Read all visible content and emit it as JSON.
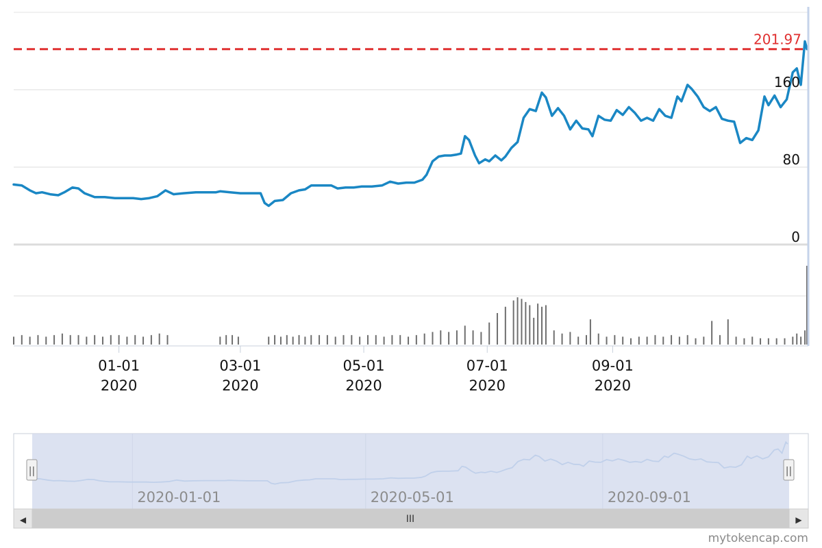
{
  "chart_data": {
    "type": "line",
    "y_axis": {
      "ticks": [
        0,
        80,
        160
      ]
    },
    "x_axis": {
      "tick_labels": [
        {
          "date": "2020-01-01",
          "line1": "01-01",
          "line2": "2020"
        },
        {
          "date": "2020-03-01",
          "line1": "03-01",
          "line2": "2020"
        },
        {
          "date": "2020-05-01",
          "line1": "05-01",
          "line2": "2020"
        },
        {
          "date": "2020-07-01",
          "line1": "07-01",
          "line2": "2020"
        },
        {
          "date": "2020-09-01",
          "line1": "09-01",
          "line2": "2020"
        }
      ]
    },
    "last_price": {
      "value": 201.97,
      "label": "201.97",
      "color": "#e03030"
    },
    "series": [
      {
        "color": "#1a87c4",
        "points": [
          [
            "2019-11-10",
            62
          ],
          [
            "2019-11-14",
            61
          ],
          [
            "2019-11-18",
            56
          ],
          [
            "2019-11-21",
            53
          ],
          [
            "2019-11-24",
            54
          ],
          [
            "2019-11-28",
            52
          ],
          [
            "2019-12-02",
            51
          ],
          [
            "2019-12-05",
            54
          ],
          [
            "2019-12-09",
            59
          ],
          [
            "2019-12-12",
            58
          ],
          [
            "2019-12-15",
            53
          ],
          [
            "2019-12-20",
            49
          ],
          [
            "2019-12-25",
            49
          ],
          [
            "2019-12-30",
            48
          ],
          [
            "2020-01-03",
            48
          ],
          [
            "2020-01-08",
            48
          ],
          [
            "2020-01-12",
            47
          ],
          [
            "2020-01-16",
            48
          ],
          [
            "2020-01-20",
            50
          ],
          [
            "2020-01-24",
            56
          ],
          [
            "2020-01-28",
            52
          ],
          [
            "2020-02-02",
            53
          ],
          [
            "2020-02-08",
            54
          ],
          [
            "2020-02-14",
            54
          ],
          [
            "2020-02-18",
            54
          ],
          [
            "2020-02-20",
            55
          ],
          [
            "2020-02-25",
            54
          ],
          [
            "2020-03-01",
            53
          ],
          [
            "2020-03-06",
            53
          ],
          [
            "2020-03-11",
            53
          ],
          [
            "2020-03-13",
            43
          ],
          [
            "2020-03-15",
            40
          ],
          [
            "2020-03-18",
            45
          ],
          [
            "2020-03-22",
            46
          ],
          [
            "2020-03-26",
            53
          ],
          [
            "2020-03-30",
            56
          ],
          [
            "2020-04-02",
            57
          ],
          [
            "2020-04-05",
            61
          ],
          [
            "2020-04-10",
            61
          ],
          [
            "2020-04-15",
            61
          ],
          [
            "2020-04-18",
            58
          ],
          [
            "2020-04-22",
            59
          ],
          [
            "2020-04-26",
            59
          ],
          [
            "2020-04-30",
            60
          ],
          [
            "2020-05-05",
            60
          ],
          [
            "2020-05-10",
            61
          ],
          [
            "2020-05-14",
            65
          ],
          [
            "2020-05-18",
            63
          ],
          [
            "2020-05-22",
            64
          ],
          [
            "2020-05-26",
            64
          ],
          [
            "2020-05-30",
            67
          ],
          [
            "2020-06-01",
            72
          ],
          [
            "2020-06-04",
            86
          ],
          [
            "2020-06-07",
            91
          ],
          [
            "2020-06-10",
            92
          ],
          [
            "2020-06-13",
            92
          ],
          [
            "2020-06-16",
            93
          ],
          [
            "2020-06-18",
            94
          ],
          [
            "2020-06-20",
            112
          ],
          [
            "2020-06-22",
            108
          ],
          [
            "2020-06-25",
            92
          ],
          [
            "2020-06-27",
            84
          ],
          [
            "2020-06-30",
            88
          ],
          [
            "2020-07-02",
            86
          ],
          [
            "2020-07-05",
            92
          ],
          [
            "2020-07-08",
            87
          ],
          [
            "2020-07-10",
            91
          ],
          [
            "2020-07-13",
            100
          ],
          [
            "2020-07-16",
            106
          ],
          [
            "2020-07-19",
            131
          ],
          [
            "2020-07-22",
            140
          ],
          [
            "2020-07-25",
            138
          ],
          [
            "2020-07-28",
            157
          ],
          [
            "2020-07-30",
            152
          ],
          [
            "2020-08-02",
            133
          ],
          [
            "2020-08-05",
            141
          ],
          [
            "2020-08-08",
            133
          ],
          [
            "2020-08-11",
            119
          ],
          [
            "2020-08-14",
            128
          ],
          [
            "2020-08-17",
            120
          ],
          [
            "2020-08-20",
            119
          ],
          [
            "2020-08-22",
            112
          ],
          [
            "2020-08-25",
            133
          ],
          [
            "2020-08-28",
            129
          ],
          [
            "2020-08-31",
            128
          ],
          [
            "2020-09-03",
            139
          ],
          [
            "2020-09-06",
            134
          ],
          [
            "2020-09-09",
            142
          ],
          [
            "2020-09-12",
            136
          ],
          [
            "2020-09-15",
            128
          ],
          [
            "2020-09-18",
            131
          ],
          [
            "2020-09-21",
            128
          ],
          [
            "2020-09-24",
            140
          ],
          [
            "2020-09-27",
            133
          ],
          [
            "2020-09-30",
            131
          ],
          [
            "2020-10-03",
            153
          ],
          [
            "2020-10-05",
            148
          ],
          [
            "2020-10-08",
            165
          ],
          [
            "2020-10-10",
            161
          ],
          [
            "2020-10-13",
            153
          ],
          [
            "2020-10-16",
            142
          ],
          [
            "2020-10-19",
            138
          ],
          [
            "2020-10-22",
            142
          ],
          [
            "2020-10-25",
            130
          ],
          [
            "2020-10-28",
            128
          ],
          [
            "2020-10-31",
            127
          ],
          [
            "2020-11-03",
            105
          ],
          [
            "2020-11-06",
            110
          ],
          [
            "2020-11-09",
            108
          ],
          [
            "2020-11-12",
            118
          ],
          [
            "2020-11-15",
            153
          ],
          [
            "2020-11-17",
            144
          ],
          [
            "2020-11-20",
            154
          ],
          [
            "2020-11-23",
            142
          ],
          [
            "2020-11-26",
            150
          ],
          [
            "2020-11-29",
            178
          ],
          [
            "2020-12-01",
            182
          ],
          [
            "2020-12-03",
            165
          ],
          [
            "2020-12-05",
            210
          ],
          [
            "2020-12-06",
            201.97
          ]
        ]
      }
    ],
    "volume": {
      "color": "#6e6e6e",
      "bars": [
        [
          "2019-11-10",
          5
        ],
        [
          "2019-11-14",
          6
        ],
        [
          "2019-11-18",
          5
        ],
        [
          "2019-11-22",
          6
        ],
        [
          "2019-11-26",
          5
        ],
        [
          "2019-11-30",
          6
        ],
        [
          "2019-12-04",
          7
        ],
        [
          "2019-12-08",
          6
        ],
        [
          "2019-12-12",
          6
        ],
        [
          "2019-12-16",
          5
        ],
        [
          "2019-12-20",
          6
        ],
        [
          "2019-12-24",
          5
        ],
        [
          "2019-12-28",
          6
        ],
        [
          "2020-01-01",
          6
        ],
        [
          "2020-01-05",
          5
        ],
        [
          "2020-01-09",
          6
        ],
        [
          "2020-01-13",
          5
        ],
        [
          "2020-01-17",
          6
        ],
        [
          "2020-01-21",
          7
        ],
        [
          "2020-01-25",
          6
        ],
        [
          "2020-02-20",
          5
        ],
        [
          "2020-02-23",
          6
        ],
        [
          "2020-02-26",
          6
        ],
        [
          "2020-02-29",
          5
        ],
        [
          "2020-03-15",
          5
        ],
        [
          "2020-03-18",
          6
        ],
        [
          "2020-03-21",
          5
        ],
        [
          "2020-03-24",
          6
        ],
        [
          "2020-03-27",
          5
        ],
        [
          "2020-03-30",
          6
        ],
        [
          "2020-04-02",
          5
        ],
        [
          "2020-04-05",
          6
        ],
        [
          "2020-04-09",
          6
        ],
        [
          "2020-04-13",
          6
        ],
        [
          "2020-04-17",
          5
        ],
        [
          "2020-04-21",
          6
        ],
        [
          "2020-04-25",
          6
        ],
        [
          "2020-04-29",
          5
        ],
        [
          "2020-05-03",
          6
        ],
        [
          "2020-05-07",
          6
        ],
        [
          "2020-05-11",
          5
        ],
        [
          "2020-05-15",
          6
        ],
        [
          "2020-05-19",
          6
        ],
        [
          "2020-05-23",
          5
        ],
        [
          "2020-05-27",
          6
        ],
        [
          "2020-05-31",
          7
        ],
        [
          "2020-06-04",
          8
        ],
        [
          "2020-06-08",
          9
        ],
        [
          "2020-06-12",
          8
        ],
        [
          "2020-06-16",
          9
        ],
        [
          "2020-06-20",
          12
        ],
        [
          "2020-06-24",
          9
        ],
        [
          "2020-06-28",
          8
        ],
        [
          "2020-07-02",
          14
        ],
        [
          "2020-07-06",
          20
        ],
        [
          "2020-07-10",
          24
        ],
        [
          "2020-07-14",
          28
        ],
        [
          "2020-07-16",
          30
        ],
        [
          "2020-07-18",
          29
        ],
        [
          "2020-07-20",
          27
        ],
        [
          "2020-07-22",
          25
        ],
        [
          "2020-07-24",
          17
        ],
        [
          "2020-07-26",
          26
        ],
        [
          "2020-07-28",
          24
        ],
        [
          "2020-07-30",
          25
        ],
        [
          "2020-08-03",
          9
        ],
        [
          "2020-08-07",
          7
        ],
        [
          "2020-08-11",
          8
        ],
        [
          "2020-08-15",
          5
        ],
        [
          "2020-08-19",
          6
        ],
        [
          "2020-08-21",
          16
        ],
        [
          "2020-08-25",
          7
        ],
        [
          "2020-08-29",
          5
        ],
        [
          "2020-09-02",
          6
        ],
        [
          "2020-09-06",
          5
        ],
        [
          "2020-09-10",
          4
        ],
        [
          "2020-09-14",
          5
        ],
        [
          "2020-09-18",
          5
        ],
        [
          "2020-09-22",
          6
        ],
        [
          "2020-09-26",
          5
        ],
        [
          "2020-09-30",
          6
        ],
        [
          "2020-10-04",
          5
        ],
        [
          "2020-10-08",
          6
        ],
        [
          "2020-10-12",
          4
        ],
        [
          "2020-10-16",
          5
        ],
        [
          "2020-10-20",
          15
        ],
        [
          "2020-10-24",
          6
        ],
        [
          "2020-10-28",
          16
        ],
        [
          "2020-11-01",
          5
        ],
        [
          "2020-11-05",
          4
        ],
        [
          "2020-11-09",
          5
        ],
        [
          "2020-11-13",
          4
        ],
        [
          "2020-11-17",
          4
        ],
        [
          "2020-11-21",
          4
        ],
        [
          "2020-11-25",
          4
        ],
        [
          "2020-11-29",
          5
        ],
        [
          "2020-12-01",
          7
        ],
        [
          "2020-12-03",
          5
        ],
        [
          "2020-12-05",
          9
        ],
        [
          "2020-12-06",
          50
        ]
      ]
    },
    "navigator": {
      "tick_labels": [
        {
          "date": "2020-01-01",
          "label": "2020-01-01"
        },
        {
          "date": "2020-05-01",
          "label": "2020-05-01"
        },
        {
          "date": "2020-09-01",
          "label": "2020-09-01"
        }
      ]
    }
  },
  "scrollbar": {
    "grip": "III",
    "left_arrow": "◀",
    "right_arrow": "▶"
  },
  "navigator_handles": {
    "grip": "||"
  },
  "credit": "mytokencap.com",
  "colors": {
    "line": "#1a87c4",
    "last_price": "#e03030",
    "navigator_mask": "#d0d8ec"
  }
}
